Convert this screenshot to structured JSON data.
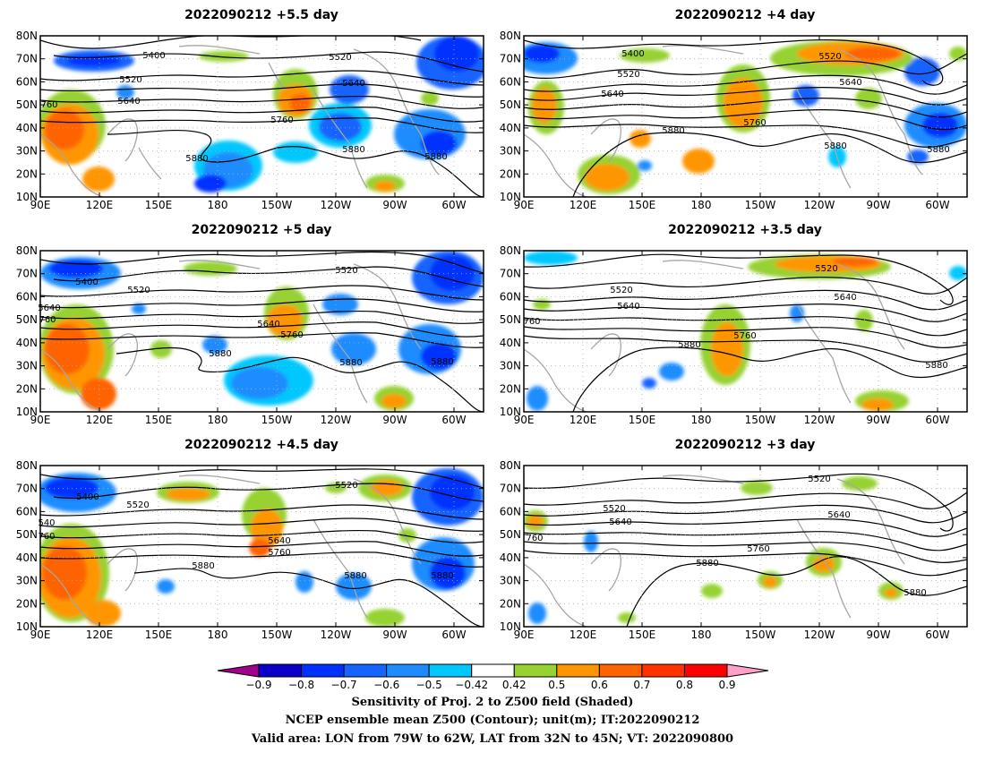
{
  "panels": [
    {
      "title": "2022090212 +5.5 day",
      "labels": [
        [
          "5400",
          "5400"
        ],
        [
          "5520",
          "5520"
        ],
        [
          "5520",
          "5520"
        ],
        [
          "5640",
          "5640"
        ],
        [
          "5640",
          "5640"
        ],
        [
          "5760",
          "5760"
        ],
        [
          "760",
          "760"
        ],
        [
          "5880",
          "5880"
        ],
        [
          "5880",
          "5880"
        ],
        [
          "5880",
          "5880"
        ]
      ]
    },
    {
      "title": "2022090212 +4 day",
      "labels": [
        [
          "5400",
          "5400"
        ],
        [
          "5520",
          "5520"
        ],
        [
          "5520",
          "5520"
        ],
        [
          "5640",
          "5640"
        ],
        [
          "5640",
          "5640"
        ],
        [
          "5760",
          "5760"
        ],
        [
          "5880",
          "5880"
        ],
        [
          "5880",
          "5880"
        ],
        [
          "5880",
          "5880"
        ]
      ]
    },
    {
      "title": "2022090212 +5 day",
      "labels": [
        [
          "5400",
          "5400"
        ],
        [
          "5520",
          "5520"
        ],
        [
          "5520",
          "5520"
        ],
        [
          "5640",
          "5640"
        ],
        [
          "760",
          "760"
        ],
        [
          "5640",
          "5640"
        ],
        [
          "5760",
          "5760"
        ],
        [
          "5880",
          "5880"
        ],
        [
          "5880",
          "5880"
        ],
        [
          "5880",
          "5880"
        ]
      ]
    },
    {
      "title": "2022090212 +3.5 day",
      "labels": [
        [
          "5520",
          "5520"
        ],
        [
          "5520",
          "5520"
        ],
        [
          "5640",
          "5640"
        ],
        [
          "5640",
          "5640"
        ],
        [
          "760",
          "760"
        ],
        [
          "5760",
          "5760"
        ],
        [
          "5880",
          "5880"
        ],
        [
          "5880",
          "5880"
        ]
      ]
    },
    {
      "title": "2022090212 +4.5 day",
      "labels": [
        [
          "5400",
          "5400"
        ],
        [
          "5520",
          "5520"
        ],
        [
          "5520",
          "5520"
        ],
        [
          "540",
          "540"
        ],
        [
          "760",
          "760"
        ],
        [
          "5640",
          "5640"
        ],
        [
          "5760",
          "5760"
        ],
        [
          "5880",
          "5880"
        ],
        [
          "5880",
          "5880"
        ],
        [
          "5880",
          "5880"
        ]
      ]
    },
    {
      "title": "2022090212 +3 day",
      "labels": [
        [
          "5520",
          "5520"
        ],
        [
          "5520",
          "5520"
        ],
        [
          "5640",
          "5640"
        ],
        [
          "5640",
          "5640"
        ],
        [
          "5760",
          "5760"
        ],
        [
          "760",
          "760"
        ],
        [
          "5880",
          "5880"
        ],
        [
          "5880",
          "5880"
        ]
      ]
    }
  ],
  "axes": {
    "lat_labels": [
      "80N",
      "70N",
      "60N",
      "50N",
      "40N",
      "30N",
      "20N",
      "10N"
    ],
    "lon_labels": [
      "90E",
      "120E",
      "150E",
      "180",
      "150W",
      "120W",
      "90W",
      "60W"
    ]
  },
  "colorbar": {
    "colors": [
      "#a0008c",
      "#0a00c8",
      "#0032ff",
      "#1464ff",
      "#1e8cff",
      "#00c8ff",
      "#ffffff",
      "#96d232",
      "#ff9600",
      "#ff6400",
      "#ff3200",
      "#ff0000",
      "#ffa0c8"
    ],
    "ticks": [
      "−0.9",
      "−0.8",
      "−0.7",
      "−0.6",
      "−0.5",
      "−0.42",
      "0.42",
      "0.5",
      "0.6",
      "0.7",
      "0.8",
      "0.9"
    ]
  },
  "caption": {
    "line1": "Sensitivity of Proj. 2 to Z500 field (Shaded)",
    "line2": "NCEP ensemble mean Z500 (Contour); unit(m); IT:2022090212",
    "line3": "Valid area: LON from 79W to 62W, LAT from 32N to 45N; VT: 2022090800"
  }
}
